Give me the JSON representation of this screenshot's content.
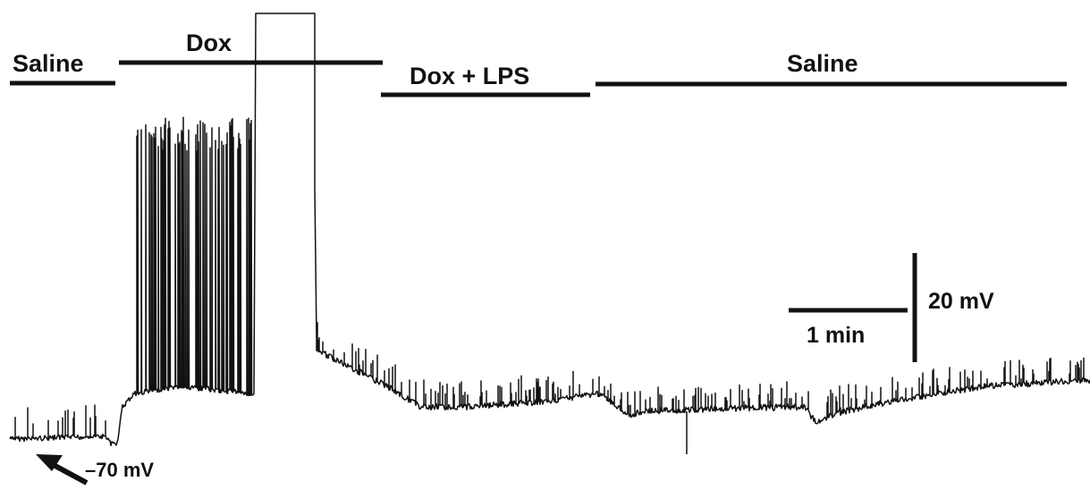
{
  "chart_data": {
    "type": "line",
    "title": "",
    "xlabel": "",
    "ylabel": "",
    "color": "#111111",
    "resting_potential_label": "–70 mV",
    "scale_bars": {
      "time_label": "1 min",
      "voltage_label": "20 mV"
    },
    "segments": [
      {
        "label": "Saline"
      },
      {
        "label": "Dox"
      },
      {
        "label": "Dox + LPS"
      },
      {
        "label": "Saline"
      }
    ]
  }
}
